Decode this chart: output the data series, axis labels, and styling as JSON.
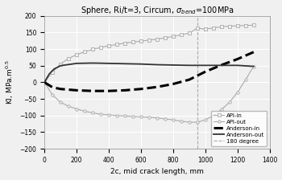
{
  "title": "Sphere, Ri/t=3, Circum, $\\sigma_{bend}$=100MPa",
  "xlabel": "2c, mid crack length, mm",
  "ylabel": "KI, MPa.m$^{0.5}$",
  "xlim": [
    0,
    1400
  ],
  "ylim": [
    -200,
    200
  ],
  "xticks": [
    0,
    200,
    400,
    600,
    800,
    1000,
    1200,
    1400
  ],
  "yticks": [
    -200,
    -150,
    -100,
    -50,
    0,
    50,
    100,
    150,
    200
  ],
  "vline_x": 950,
  "api_in_x": [
    0,
    50,
    100,
    150,
    200,
    250,
    300,
    350,
    400,
    450,
    500,
    550,
    600,
    650,
    700,
    750,
    800,
    850,
    900,
    950,
    1000,
    1050,
    1100,
    1150,
    1200,
    1250,
    1300
  ],
  "api_in_y": [
    0,
    30,
    55,
    72,
    83,
    92,
    99,
    105,
    110,
    114,
    118,
    121,
    124,
    127,
    130,
    134,
    138,
    143,
    148,
    163,
    160,
    164,
    167,
    169,
    170,
    171,
    172
  ],
  "api_out_x": [
    0,
    50,
    100,
    150,
    200,
    250,
    300,
    350,
    400,
    450,
    500,
    550,
    600,
    650,
    700,
    750,
    800,
    850,
    900,
    950,
    1000,
    1050,
    1100,
    1150,
    1200,
    1250,
    1300
  ],
  "api_out_y": [
    0,
    -38,
    -60,
    -72,
    -80,
    -87,
    -92,
    -96,
    -98,
    -100,
    -101,
    -103,
    -104,
    -105,
    -107,
    -110,
    -113,
    -117,
    -120,
    -120,
    -113,
    -100,
    -82,
    -60,
    -30,
    8,
    48
  ],
  "anderson_in_x": [
    0,
    50,
    100,
    200,
    300,
    400,
    500,
    600,
    700,
    800,
    900,
    950,
    1000,
    1100,
    1200,
    1300
  ],
  "anderson_in_y": [
    0,
    -15,
    -20,
    -24,
    -26,
    -26,
    -24,
    -20,
    -14,
    -5,
    8,
    20,
    32,
    52,
    70,
    91
  ],
  "anderson_out_x": [
    0,
    30,
    60,
    100,
    200,
    300,
    400,
    500,
    600,
    700,
    800,
    900,
    950,
    1000,
    1100,
    1200,
    1300
  ],
  "anderson_out_y": [
    0,
    25,
    40,
    50,
    57,
    58,
    57,
    56,
    55,
    53,
    52,
    51,
    51,
    51,
    51,
    51,
    48
  ],
  "color_api": "#aaaaaa",
  "color_anderson_in": "#000000",
  "color_anderson_out": "#333333",
  "color_vline": "#aaaaaa",
  "bg_color": "#f0f0f0",
  "grid_color": "#ffffff"
}
